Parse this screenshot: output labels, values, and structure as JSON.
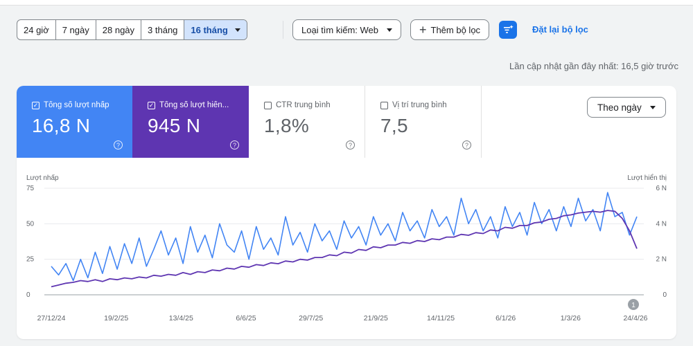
{
  "date_ranges": [
    {
      "label": "24 giờ",
      "active": false
    },
    {
      "label": "7 ngày",
      "active": false
    },
    {
      "label": "28 ngày",
      "active": false
    },
    {
      "label": "3 tháng",
      "active": false
    },
    {
      "label": "16 tháng",
      "active": true
    }
  ],
  "toolbar": {
    "search_type": "Loại tìm kiếm: Web",
    "add_filter": "Thêm bộ lọc",
    "reset": "Đặt lại bộ lọc"
  },
  "updated_text": "Lần cập nhật gần đây nhất: 16,5 giờ trước",
  "cards": [
    {
      "label": "Tổng số lượt nhấp",
      "value": "16,8 N",
      "checked": true,
      "color": "#4285f4"
    },
    {
      "label": "Tổng số lượt hiển...",
      "value": "945 N",
      "checked": true,
      "color": "#5e35b1"
    },
    {
      "label": "CTR trung bình",
      "value": "1,8%",
      "checked": false,
      "color": "#ffffff"
    },
    {
      "label": "Vị trí trung bình",
      "value": "7,5",
      "checked": false,
      "color": "#ffffff"
    }
  ],
  "group_by": "Theo ngày",
  "colors": {
    "clicks": "#4285f4",
    "impressions": "#5e35b1",
    "accent": "#1a73e8"
  },
  "chart_data": {
    "type": "line",
    "left_axis_label": "Lượt nhấp",
    "right_axis_label": "Lượt hiển thị",
    "left_ticks": [
      "75",
      "50",
      "25",
      "0"
    ],
    "right_ticks": [
      "6 N",
      "4 N",
      "2 N",
      "0"
    ],
    "ylim_left": [
      0,
      75
    ],
    "ylim_right": [
      0,
      6000
    ],
    "x_ticks": [
      "27/12/24",
      "19/2/25",
      "13/4/25",
      "6/6/25",
      "29/7/25",
      "21/9/25",
      "14/11/25",
      "6/1/26",
      "1/3/26",
      "24/4/26"
    ],
    "annotation": "1",
    "series": [
      {
        "name": "Lượt nhấp",
        "axis": "left",
        "color": "#4285f4",
        "values": [
          20,
          14,
          22,
          10,
          25,
          12,
          30,
          15,
          34,
          18,
          36,
          22,
          40,
          20,
          32,
          45,
          28,
          40,
          22,
          48,
          30,
          42,
          26,
          50,
          35,
          30,
          45,
          25,
          48,
          32,
          40,
          28,
          55,
          35,
          44,
          30,
          50,
          38,
          45,
          32,
          52,
          40,
          48,
          35,
          55,
          42,
          50,
          38,
          58,
          45,
          52,
          40,
          60,
          48,
          55,
          42,
          68,
          50,
          60,
          45,
          55,
          40,
          62,
          48,
          58,
          42,
          65,
          50,
          60,
          45,
          62,
          48,
          68,
          52,
          60,
          45,
          72,
          55,
          58,
          42,
          55
        ]
      },
      {
        "name": "Lượt hiển thị",
        "axis": "right",
        "color": "#5e35b1",
        "values": [
          450,
          550,
          650,
          700,
          800,
          750,
          850,
          750,
          900,
          850,
          950,
          900,
          1000,
          950,
          1100,
          1050,
          1150,
          1100,
          1250,
          1150,
          1300,
          1250,
          1400,
          1350,
          1500,
          1450,
          1600,
          1550,
          1700,
          1650,
          1800,
          1750,
          1900,
          1850,
          2000,
          1950,
          2100,
          2100,
          2250,
          2200,
          2400,
          2350,
          2550,
          2500,
          2700,
          2650,
          2800,
          2800,
          2950,
          2900,
          3050,
          3000,
          3150,
          3100,
          3250,
          3250,
          3400,
          3350,
          3500,
          3450,
          3650,
          3600,
          3800,
          3750,
          3900,
          3900,
          4050,
          4100,
          4250,
          4300,
          4450,
          4500,
          4600,
          4650,
          4700,
          4650,
          4750,
          4700,
          4300,
          3600,
          2600
        ]
      }
    ]
  }
}
